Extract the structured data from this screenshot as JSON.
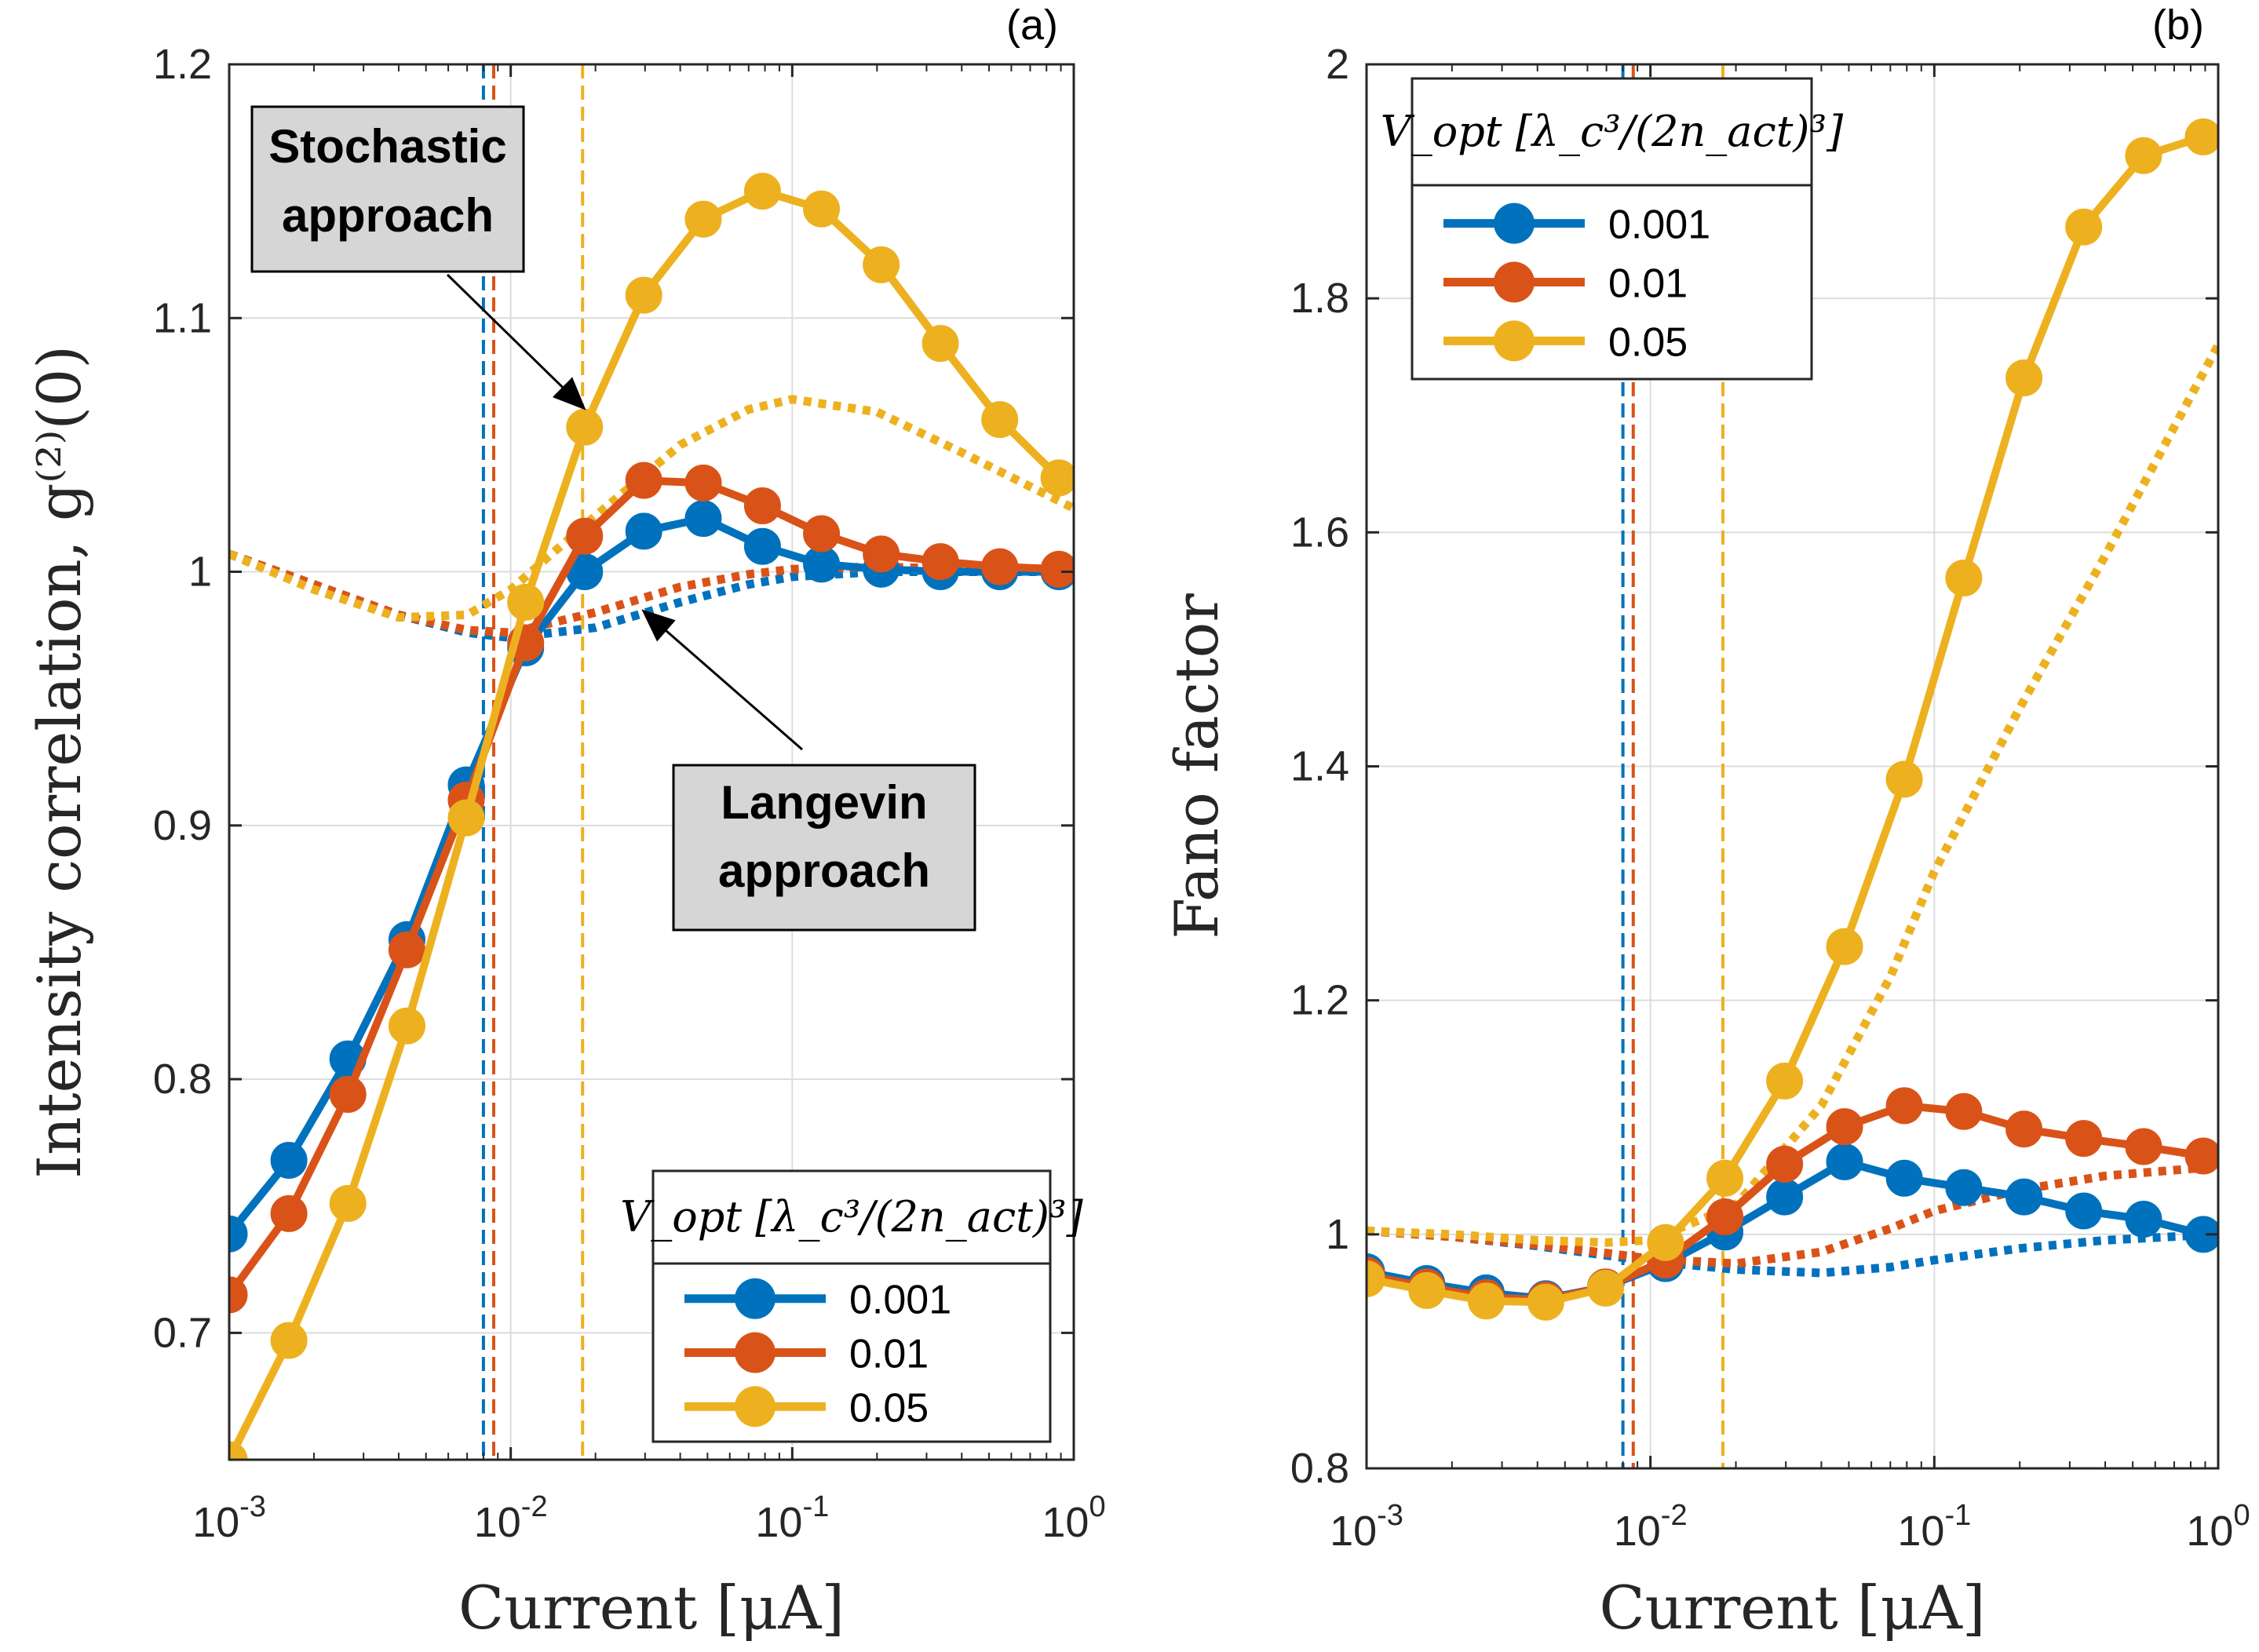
{
  "chart_data": [
    {
      "type": "line",
      "panel_label": "(a)",
      "xlabel": "Current [μA]",
      "ylabel": "Intensity correlation, g⁽²⁾(0)",
      "xscale": "log",
      "xlim": [
        0.001,
        1
      ],
      "ylim": [
        0.65,
        1.2
      ],
      "xticks": [
        0.001,
        0.01,
        0.1,
        1
      ],
      "xtick_labels": [
        {
          "base": "10",
          "exp": "-3"
        },
        {
          "base": "10",
          "exp": "-2"
        },
        {
          "base": "10",
          "exp": "-1"
        },
        {
          "base": "10",
          "exp": "0"
        }
      ],
      "yticks": [
        0.7,
        0.8,
        0.9,
        1.0,
        1.1,
        1.2
      ],
      "ytick_labels": [
        "0.7",
        "0.8",
        "0.9",
        "1",
        "1.1",
        "1.2"
      ],
      "grid": true,
      "legend": {
        "placement": "bottom-right",
        "title": "V_opt [λ_c³/(2n_act)³]",
        "entries": [
          "0.001",
          "0.01",
          "0.05"
        ]
      },
      "series": [
        {
          "name": "0.001",
          "kind": "stochastic",
          "color": "#0072BD",
          "x": [
            0.001,
            0.00163,
            0.00264,
            0.00428,
            0.00695,
            0.0113,
            0.0183,
            0.0297,
            0.0483,
            0.0784,
            0.127,
            0.207,
            0.336,
            0.546,
            0.886
          ],
          "y": [
            0.739,
            0.768,
            0.808,
            0.855,
            0.916,
            0.97,
            1.0,
            1.016,
            1.021,
            1.01,
            1.003,
            1.001,
            1.0,
            1.0,
            1.0
          ]
        },
        {
          "name": "0.01",
          "kind": "stochastic",
          "color": "#D95319",
          "x": [
            0.001,
            0.00163,
            0.00264,
            0.00428,
            0.00695,
            0.0113,
            0.0183,
            0.0297,
            0.0483,
            0.0784,
            0.127,
            0.207,
            0.336,
            0.546,
            0.886
          ],
          "y": [
            0.715,
            0.747,
            0.794,
            0.851,
            0.91,
            0.972,
            1.014,
            1.036,
            1.035,
            1.026,
            1.015,
            1.007,
            1.004,
            1.002,
            1.001
          ]
        },
        {
          "name": "0.05",
          "kind": "stochastic",
          "color": "#EDB120",
          "x": [
            0.001,
            0.00163,
            0.00264,
            0.00428,
            0.00695,
            0.0113,
            0.0183,
            0.0297,
            0.0483,
            0.0784,
            0.127,
            0.207,
            0.336,
            0.546,
            0.886
          ],
          "y": [
            0.65,
            0.697,
            0.751,
            0.821,
            0.903,
            0.988,
            1.057,
            1.109,
            1.139,
            1.15,
            1.143,
            1.121,
            1.09,
            1.06,
            1.037
          ]
        },
        {
          "name": "0.001 Langevin",
          "kind": "langevin",
          "color": "#0072BD",
          "x": [
            0.001,
            0.002,
            0.004,
            0.007,
            0.01,
            0.02,
            0.04,
            0.07,
            0.1,
            0.2,
            0.4,
            1.0
          ],
          "y": [
            1.007,
            0.995,
            0.983,
            0.976,
            0.974,
            0.978,
            0.988,
            0.995,
            0.998,
            1.0,
            1.0,
            1.0
          ]
        },
        {
          "name": "0.01 Langevin",
          "kind": "langevin",
          "color": "#D95319",
          "x": [
            0.001,
            0.002,
            0.004,
            0.007,
            0.01,
            0.02,
            0.04,
            0.07,
            0.1,
            0.2,
            0.4,
            1.0
          ],
          "y": [
            1.007,
            0.995,
            0.983,
            0.977,
            0.976,
            0.984,
            0.994,
            0.999,
            1.001,
            1.002,
            1.001,
            1.0
          ]
        },
        {
          "name": "0.05 Langevin",
          "kind": "langevin",
          "color": "#EDB120",
          "x": [
            0.001,
            0.002,
            0.004,
            0.007,
            0.01,
            0.02,
            0.04,
            0.07,
            0.1,
            0.2,
            0.4,
            1.0
          ],
          "y": [
            1.007,
            0.993,
            0.982,
            0.983,
            0.993,
            1.022,
            1.05,
            1.064,
            1.068,
            1.063,
            1.047,
            1.025
          ]
        }
      ],
      "vlines": [
        {
          "x": 0.008,
          "color": "#0072BD"
        },
        {
          "x": 0.0087,
          "color": "#D95319"
        },
        {
          "x": 0.018,
          "color": "#EDB120"
        }
      ],
      "annotations": [
        {
          "label": "Stochastic approach",
          "lines": [
            "Stochastic",
            "approach"
          ],
          "arrow_to": [
            0.018,
            1.065
          ]
        },
        {
          "label": "Langevin approach",
          "lines": [
            "Langevin",
            "approach"
          ],
          "arrow_to": [
            0.03,
            0.984
          ]
        }
      ]
    },
    {
      "type": "line",
      "panel_label": "(b)",
      "xlabel": "Current [μA]",
      "ylabel": "Fano factor",
      "xscale": "log",
      "xlim": [
        0.001,
        1
      ],
      "ylim": [
        0.8,
        2.0
      ],
      "xticks": [
        0.001,
        0.01,
        0.1,
        1
      ],
      "xtick_labels": [
        {
          "base": "10",
          "exp": "-3"
        },
        {
          "base": "10",
          "exp": "-2"
        },
        {
          "base": "10",
          "exp": "-1"
        },
        {
          "base": "10",
          "exp": "0"
        }
      ],
      "yticks": [
        0.8,
        1.0,
        1.2,
        1.4,
        1.6,
        1.8,
        2.0
      ],
      "ytick_labels": [
        "0.8",
        "1",
        "1.2",
        "1.4",
        "1.6",
        "1.8",
        "2"
      ],
      "grid": true,
      "legend": {
        "placement": "top-left",
        "title": "V_opt [λ_c³/(2n_act)³]",
        "entries": [
          "0.001",
          "0.01",
          "0.05"
        ]
      },
      "series": [
        {
          "name": "0.001",
          "kind": "stochastic",
          "color": "#0072BD",
          "x": [
            0.001,
            0.00163,
            0.00264,
            0.00428,
            0.00695,
            0.0113,
            0.0183,
            0.0297,
            0.0483,
            0.0784,
            0.127,
            0.207,
            0.336,
            0.546,
            0.886
          ],
          "y": [
            0.968,
            0.958,
            0.95,
            0.945,
            0.955,
            0.975,
            1.002,
            1.032,
            1.062,
            1.048,
            1.04,
            1.032,
            1.02,
            1.013,
            1.0
          ]
        },
        {
          "name": "0.01",
          "kind": "stochastic",
          "color": "#D95319",
          "x": [
            0.001,
            0.00163,
            0.00264,
            0.00428,
            0.00695,
            0.0113,
            0.0183,
            0.0297,
            0.0483,
            0.0784,
            0.127,
            0.207,
            0.336,
            0.546,
            0.886
          ],
          "y": [
            0.965,
            0.955,
            0.946,
            0.944,
            0.955,
            0.978,
            1.015,
            1.06,
            1.092,
            1.11,
            1.105,
            1.09,
            1.082,
            1.075,
            1.067
          ]
        },
        {
          "name": "0.05",
          "kind": "stochastic",
          "color": "#EDB120",
          "x": [
            0.001,
            0.00163,
            0.00264,
            0.00428,
            0.00695,
            0.0113,
            0.0183,
            0.0297,
            0.0483,
            0.0784,
            0.127,
            0.207,
            0.336,
            0.546,
            0.886
          ],
          "y": [
            0.962,
            0.952,
            0.943,
            0.942,
            0.954,
            0.993,
            1.048,
            1.131,
            1.246,
            1.389,
            1.561,
            1.732,
            1.861,
            1.922,
            1.938
          ]
        },
        {
          "name": "0.001 Langevin",
          "kind": "langevin",
          "color": "#0072BD",
          "x": [
            0.001,
            0.002,
            0.004,
            0.007,
            0.01,
            0.02,
            0.04,
            0.07,
            0.1,
            0.2,
            0.4,
            1.0
          ],
          "y": [
            1.003,
            0.998,
            0.99,
            0.982,
            0.977,
            0.97,
            0.967,
            0.972,
            0.978,
            0.988,
            0.995,
            1.0
          ]
        },
        {
          "name": "0.01 Langevin",
          "kind": "langevin",
          "color": "#D95319",
          "x": [
            0.001,
            0.002,
            0.004,
            0.007,
            0.01,
            0.02,
            0.04,
            0.07,
            0.1,
            0.2,
            0.4,
            1.0
          ],
          "y": [
            1.003,
            0.998,
            0.991,
            0.984,
            0.979,
            0.975,
            0.985,
            1.005,
            1.02,
            1.038,
            1.05,
            1.058
          ]
        },
        {
          "name": "0.05 Langevin",
          "kind": "langevin",
          "color": "#EDB120",
          "x": [
            0.001,
            0.002,
            0.004,
            0.007,
            0.01,
            0.02,
            0.04,
            0.07,
            0.1,
            0.2,
            0.4,
            1.0
          ],
          "y": [
            1.003,
            1.0,
            0.995,
            0.993,
            0.995,
            1.025,
            1.11,
            1.22,
            1.31,
            1.45,
            1.58,
            1.76
          ]
        }
      ],
      "vlines": [
        {
          "x": 0.008,
          "color": "#0072BD"
        },
        {
          "x": 0.0087,
          "color": "#D95319"
        },
        {
          "x": 0.018,
          "color": "#EDB120"
        }
      ],
      "annotations": []
    }
  ]
}
